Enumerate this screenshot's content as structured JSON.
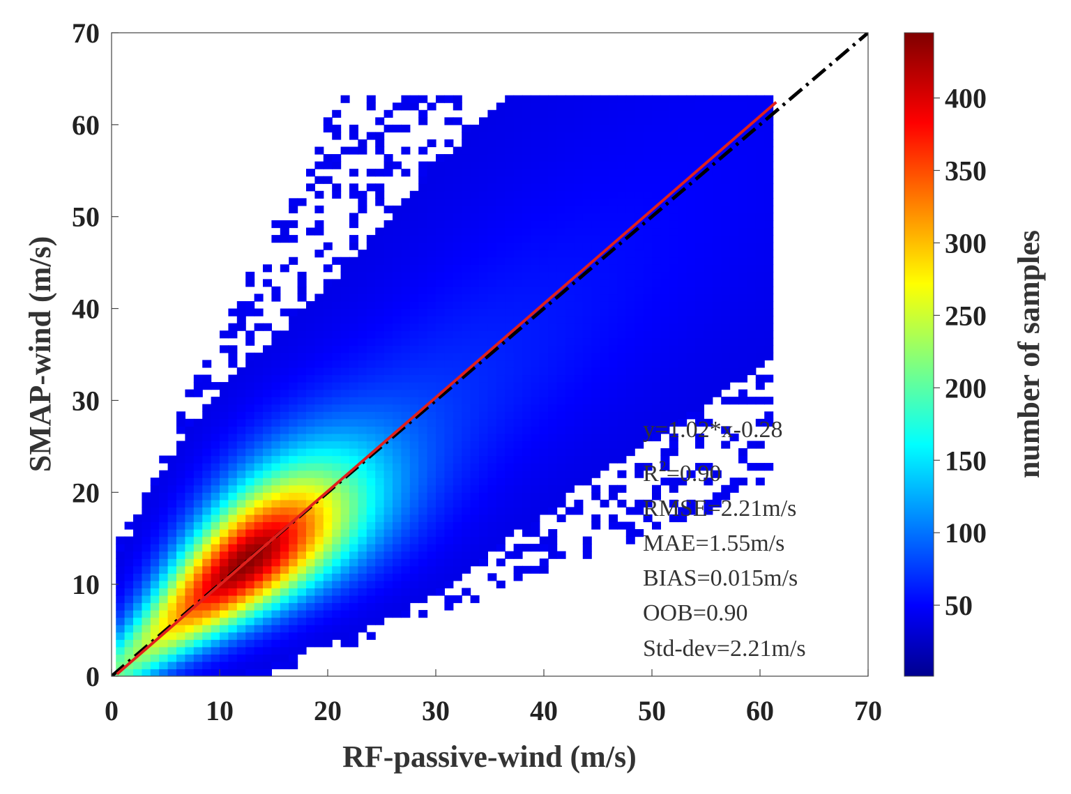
{
  "chart_data": {
    "type": "heatmap",
    "title": "",
    "xlabel": "RF-passive-wind (m/s)",
    "ylabel": "SMAP-wind (m/s)",
    "xlim": [
      0,
      70
    ],
    "ylim": [
      0,
      70
    ],
    "xticks": [
      "0",
      "10",
      "20",
      "30",
      "40",
      "50",
      "60",
      "70"
    ],
    "yticks": [
      "0",
      "10",
      "20",
      "30",
      "40",
      "50",
      "60",
      "70"
    ],
    "colorbar": {
      "label": "number of samples",
      "range": [
        1,
        445
      ],
      "ticks": [
        "50",
        "100",
        "150",
        "200",
        "250",
        "300",
        "350",
        "400"
      ],
      "colormap": "jet"
    },
    "density_model": {
      "description": "2D histogram of samples concentrated along y = x",
      "peak_count": 440,
      "peak_location": [
        12.5,
        12.5
      ],
      "max_x_extent": 61
    },
    "fit_line": {
      "slope": 1.02,
      "intercept": -0.28,
      "x_range": [
        0.5,
        61.5
      ],
      "color": "#e0201c"
    },
    "reference_line": {
      "slope": 1,
      "intercept": 0,
      "x_range": [
        0,
        70
      ],
      "color": "#000000",
      "style": "dash-dot"
    },
    "stats": [
      {
        "id": "fit",
        "text": "y=1.02*x-0.28"
      },
      {
        "id": "r2",
        "text": "R",
        "sup": "2",
        "rest": "=0.90"
      },
      {
        "id": "rmse",
        "text": "RMSE=2.21m/s"
      },
      {
        "id": "mae",
        "text": "MAE=1.55m/s"
      },
      {
        "id": "bias",
        "text": "BIAS=0.015m/s"
      },
      {
        "id": "oob",
        "text": "OOB=0.90"
      },
      {
        "id": "std",
        "text": "Std-dev=2.21m/s"
      }
    ]
  }
}
